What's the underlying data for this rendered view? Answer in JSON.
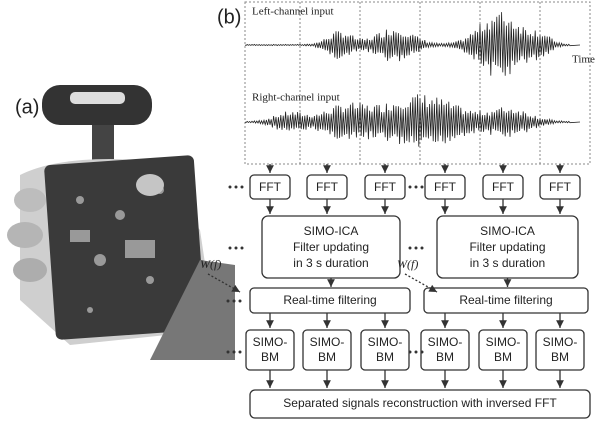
{
  "panels": {
    "a": {
      "label": "(a)"
    },
    "b": {
      "label": "(b)"
    }
  },
  "signals": {
    "left_label": "Left-channel input",
    "time_label": "Time",
    "right_label": "Right-channel input"
  },
  "fft_blocks": [
    "FFT",
    "FFT",
    "FFT",
    "FFT",
    "FFT",
    "FFT"
  ],
  "ica_blocks": [
    {
      "lines": [
        "SIMO-ICA",
        "Filter updating",
        "in 3 s duration"
      ]
    },
    {
      "lines": [
        "SIMO-ICA",
        "Filter updating",
        "in 3 s duration"
      ]
    }
  ],
  "weight_labels": [
    "W(f)",
    "W(f)"
  ],
  "filter_blocks": [
    "Real-time filtering",
    "Real-time filtering"
  ],
  "bm_blocks": [
    {
      "lines": [
        "SIMO-",
        "BM"
      ]
    },
    {
      "lines": [
        "SIMO-",
        "BM"
      ]
    },
    {
      "lines": [
        "SIMO-",
        "BM"
      ]
    },
    {
      "lines": [
        "SIMO-",
        "BM"
      ]
    },
    {
      "lines": [
        "SIMO-",
        "BM"
      ]
    },
    {
      "lines": [
        "SIMO-",
        "BM"
      ]
    }
  ],
  "output_block": "Separated signals reconstruction with inversed FFT"
}
